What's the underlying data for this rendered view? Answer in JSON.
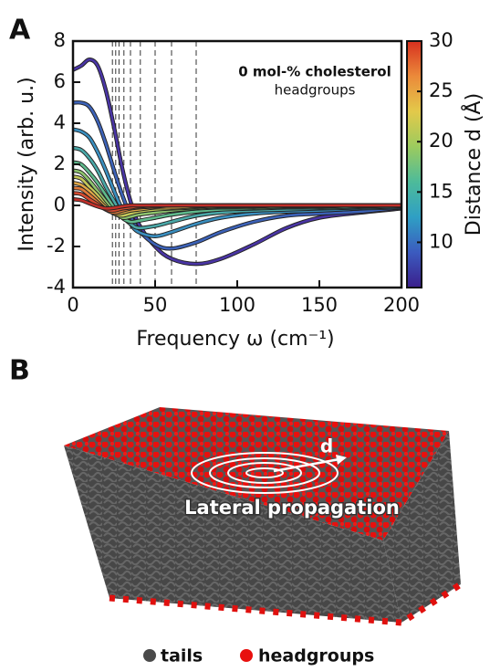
{
  "chart_data": {
    "type": "line",
    "panel_label": "A",
    "annotation": [
      "0 mol-% cholesterol",
      "headgroups"
    ],
    "xlabel": "Frequency ω (cm⁻¹)",
    "ylabel": "Intensity (arb. u.)",
    "x": [
      0,
      5,
      10,
      15,
      20,
      25,
      30,
      35,
      40,
      50,
      60,
      75,
      90,
      110,
      130,
      150,
      175,
      200
    ],
    "xlim": [
      0,
      200
    ],
    "xticks": [
      0,
      50,
      100,
      150,
      200
    ],
    "ylim": [
      -4,
      8
    ],
    "yticks": [
      -4,
      -2,
      0,
      2,
      4,
      6,
      8
    ],
    "vlines": [
      24,
      26,
      28,
      31,
      35,
      41,
      50,
      60,
      75
    ],
    "series": [
      {
        "color": "#4a35a6",
        "values": [
          6.6,
          6.8,
          7.1,
          6.8,
          5.6,
          3.8,
          1.8,
          0.2,
          -0.9,
          -2.0,
          -2.6,
          -2.85,
          -2.6,
          -1.9,
          -1.1,
          -0.6,
          -0.35,
          -0.15
        ]
      },
      {
        "color": "#3c62b8",
        "values": [
          5.0,
          5.0,
          4.8,
          4.1,
          3.0,
          1.7,
          0.5,
          -0.5,
          -1.2,
          -1.9,
          -2.1,
          -1.8,
          -1.3,
          -0.8,
          -0.5,
          -0.4,
          -0.3,
          -0.1
        ]
      },
      {
        "color": "#3a8fc0",
        "values": [
          3.7,
          3.6,
          3.3,
          2.6,
          1.7,
          0.7,
          -0.2,
          -0.9,
          -1.3,
          -1.5,
          -1.3,
          -0.9,
          -0.6,
          -0.4,
          -0.3,
          -0.25,
          -0.15,
          -0.1
        ]
      },
      {
        "color": "#4aa8a8",
        "values": [
          2.8,
          2.7,
          2.3,
          1.7,
          0.9,
          0.2,
          -0.5,
          -0.9,
          -1.1,
          -1.0,
          -0.8,
          -0.5,
          -0.35,
          -0.25,
          -0.2,
          -0.15,
          -0.1,
          -0.05
        ]
      },
      {
        "color": "#5fba8c",
        "values": [
          2.1,
          2.0,
          1.6,
          1.1,
          0.5,
          -0.1,
          -0.6,
          -0.8,
          -0.75,
          -0.6,
          -0.45,
          -0.3,
          -0.2,
          -0.15,
          -0.1,
          -0.1,
          -0.05,
          0
        ]
      },
      {
        "color": "#8ec56e",
        "values": [
          1.7,
          1.6,
          1.2,
          0.7,
          0.2,
          -0.3,
          -0.6,
          -0.55,
          -0.45,
          -0.35,
          -0.25,
          -0.15,
          -0.1,
          -0.1,
          -0.05,
          -0.05,
          0,
          0
        ]
      },
      {
        "color": "#c4c85a",
        "values": [
          1.4,
          1.3,
          0.9,
          0.5,
          0.0,
          -0.4,
          -0.5,
          -0.4,
          -0.3,
          -0.2,
          -0.15,
          -0.1,
          -0.05,
          -0.05,
          0,
          0,
          0,
          0
        ]
      },
      {
        "color": "#e0a848",
        "values": [
          1.1,
          1.0,
          0.7,
          0.3,
          -0.1,
          -0.4,
          -0.35,
          -0.25,
          -0.2,
          -0.1,
          -0.1,
          -0.05,
          0,
          0,
          0,
          0,
          0,
          0
        ]
      },
      {
        "color": "#e07a3a",
        "values": [
          0.85,
          0.8,
          0.5,
          0.15,
          -0.2,
          -0.35,
          -0.25,
          -0.15,
          -0.1,
          -0.05,
          0,
          0,
          0,
          0,
          0,
          0,
          0,
          0
        ]
      },
      {
        "color": "#d44a30",
        "values": [
          0.6,
          0.55,
          0.3,
          0.05,
          -0.2,
          -0.25,
          -0.15,
          -0.1,
          -0.05,
          0,
          0,
          0,
          0,
          0,
          0,
          0,
          0,
          0
        ]
      },
      {
        "color": "#c0302a",
        "values": [
          0.3,
          0.25,
          0.1,
          -0.05,
          -0.15,
          -0.12,
          -0.05,
          0,
          0,
          0,
          0,
          0,
          0,
          0,
          0,
          0,
          0,
          0
        ]
      }
    ],
    "colorbar": {
      "label": "Distance d (Å)",
      "lim": [
        5.5,
        30
      ],
      "ticks": [
        10,
        15,
        20,
        25,
        30
      ],
      "colors": [
        "#3b1f8c",
        "#3b5bbf",
        "#2f9fc4",
        "#4dbb9a",
        "#9ccb5e",
        "#e3c94a",
        "#eb8a3a",
        "#d7301f"
      ]
    }
  },
  "panel_b": {
    "label": "B",
    "arrow_label": "d",
    "caption": "Lateral propagation",
    "legend": [
      "tails",
      "headgroups"
    ]
  }
}
